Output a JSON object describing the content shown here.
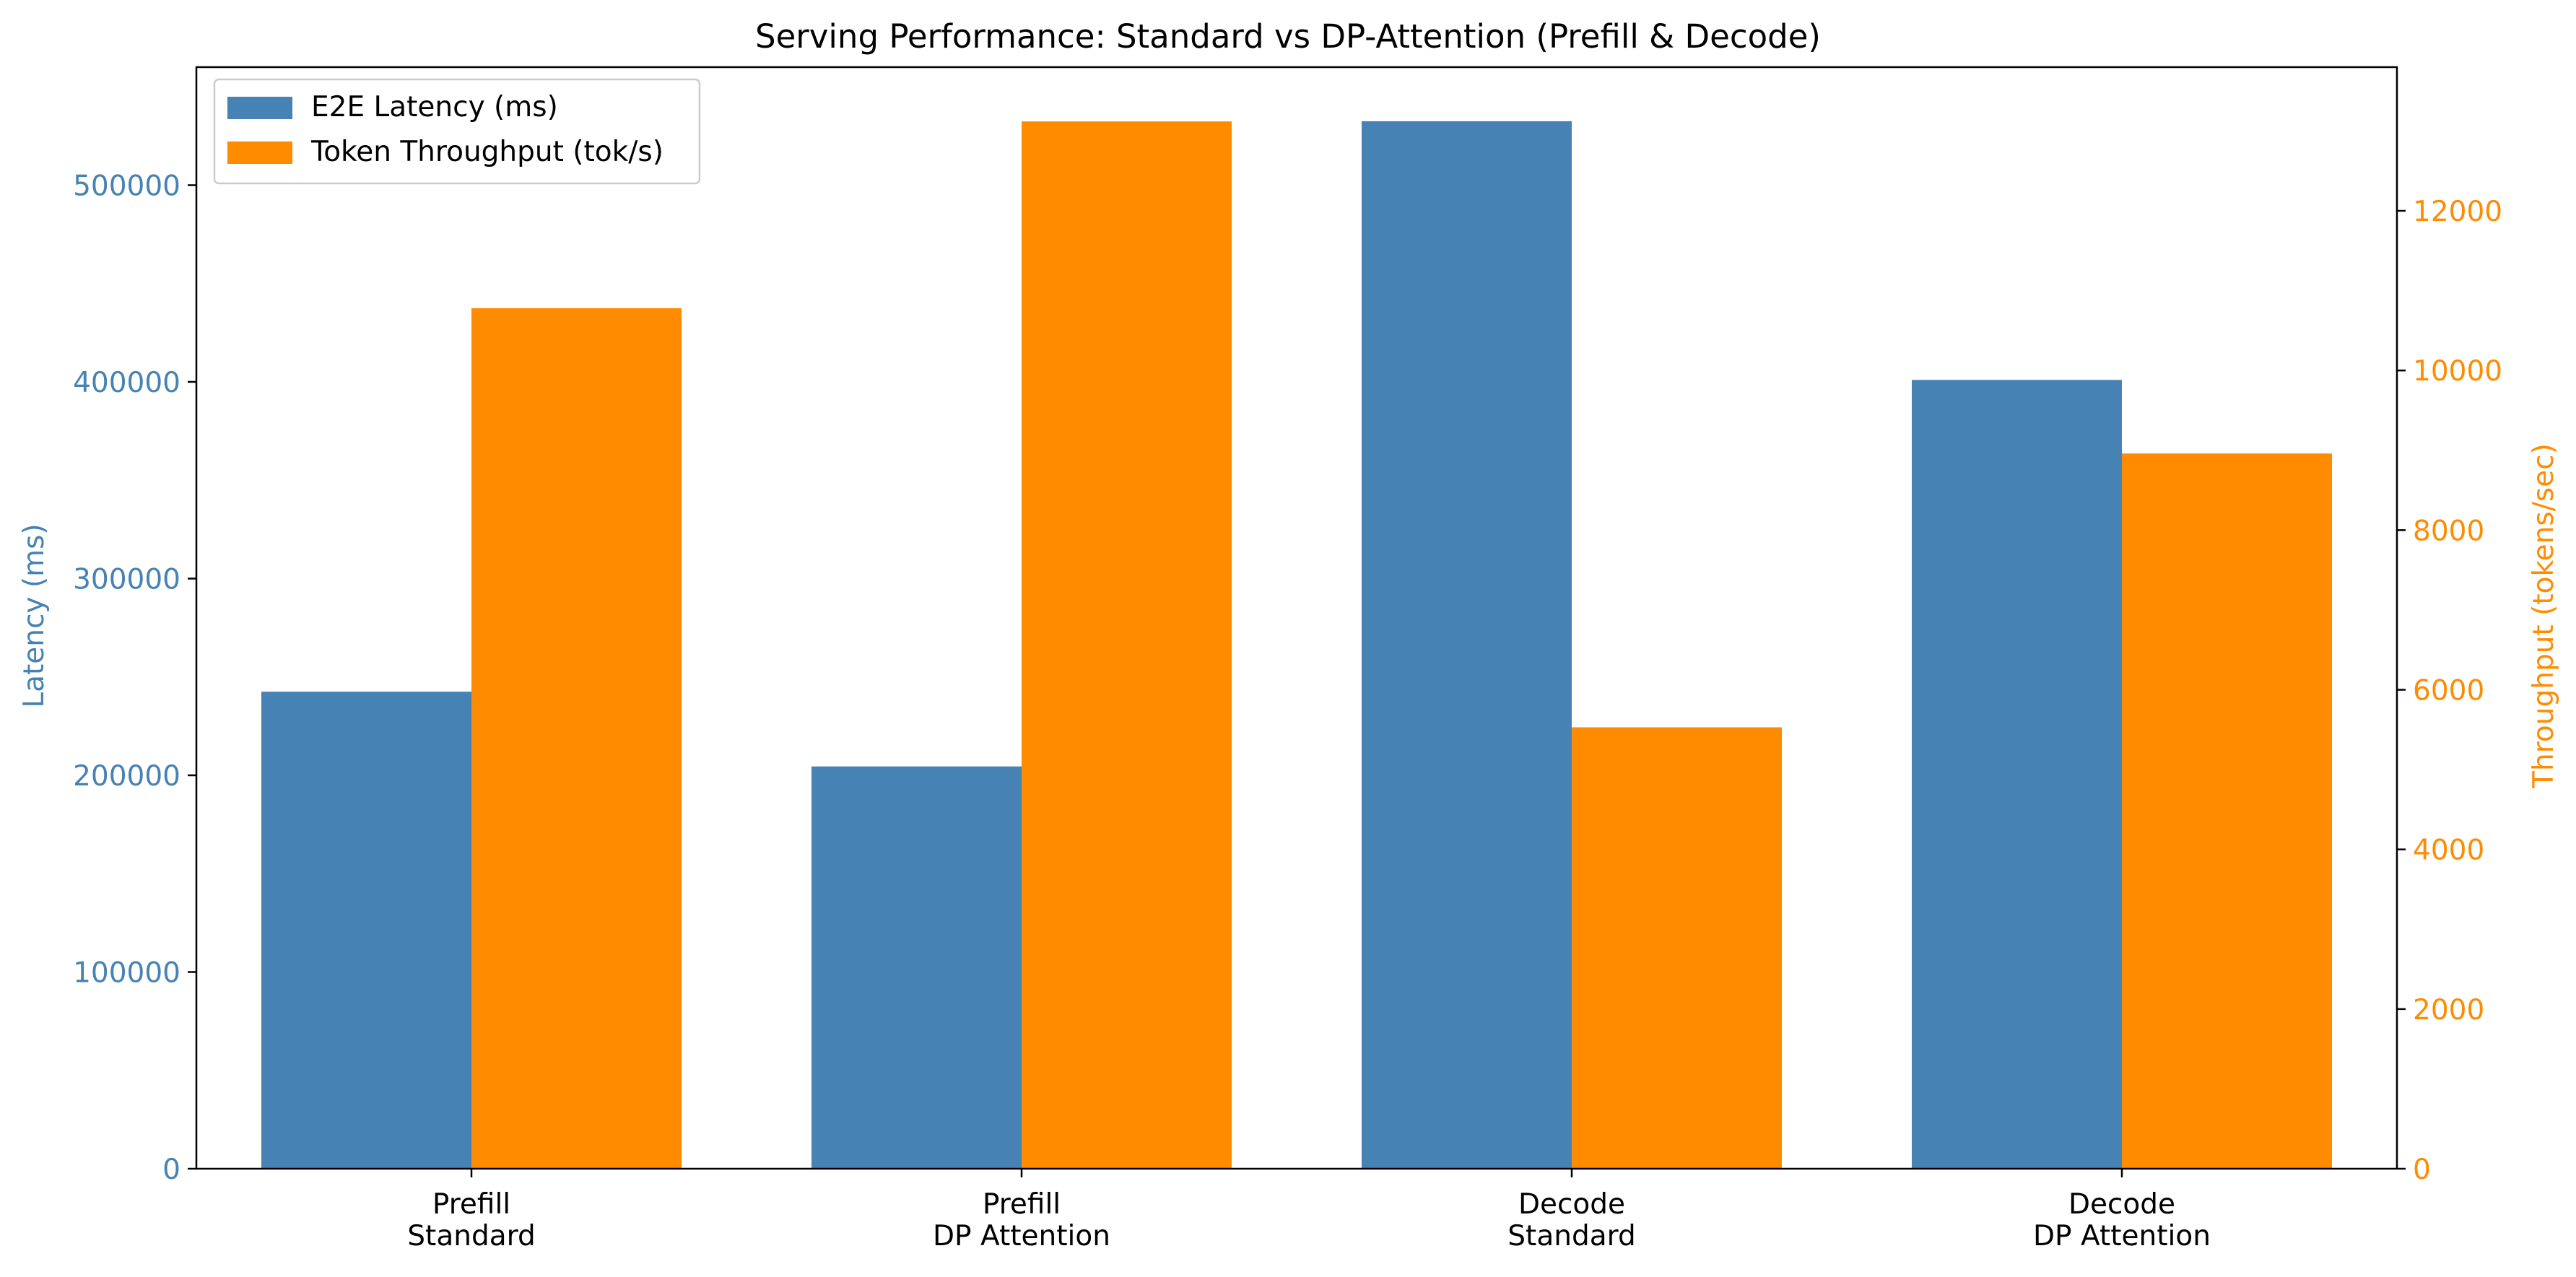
{
  "chart_data": {
    "type": "bar",
    "title": "Serving Performance: Standard vs DP-Attention (Prefill & Decode)",
    "categories": [
      [
        "Prefill",
        "Standard"
      ],
      [
        "Prefill",
        "DP Attention"
      ],
      [
        "Decode",
        "Standard"
      ],
      [
        "Decode",
        "DP Attention"
      ]
    ],
    "y_left": {
      "label": "Latency (ms)",
      "range": [
        0,
        560000
      ],
      "ticks": [
        0,
        100000,
        200000,
        300000,
        400000,
        500000
      ],
      "color": "#4682b4"
    },
    "y_right": {
      "label": "Throughput (tokens/sec)",
      "range": [
        0,
        13800
      ],
      "ticks": [
        0,
        2000,
        4000,
        6000,
        8000,
        10000,
        12000
      ],
      "color": "#ff8c00"
    },
    "series": [
      {
        "name": "E2E Latency (ms)",
        "axis": "left",
        "color": "#4682b4",
        "values": [
          242500,
          204500,
          532500,
          401000
        ]
      },
      {
        "name": "Token Throughput (tok/s)",
        "axis": "right",
        "color": "#ff8c00",
        "values": [
          10780,
          13120,
          5530,
          8960
        ]
      }
    ],
    "legend_position": "top-left",
    "grid": false
  }
}
